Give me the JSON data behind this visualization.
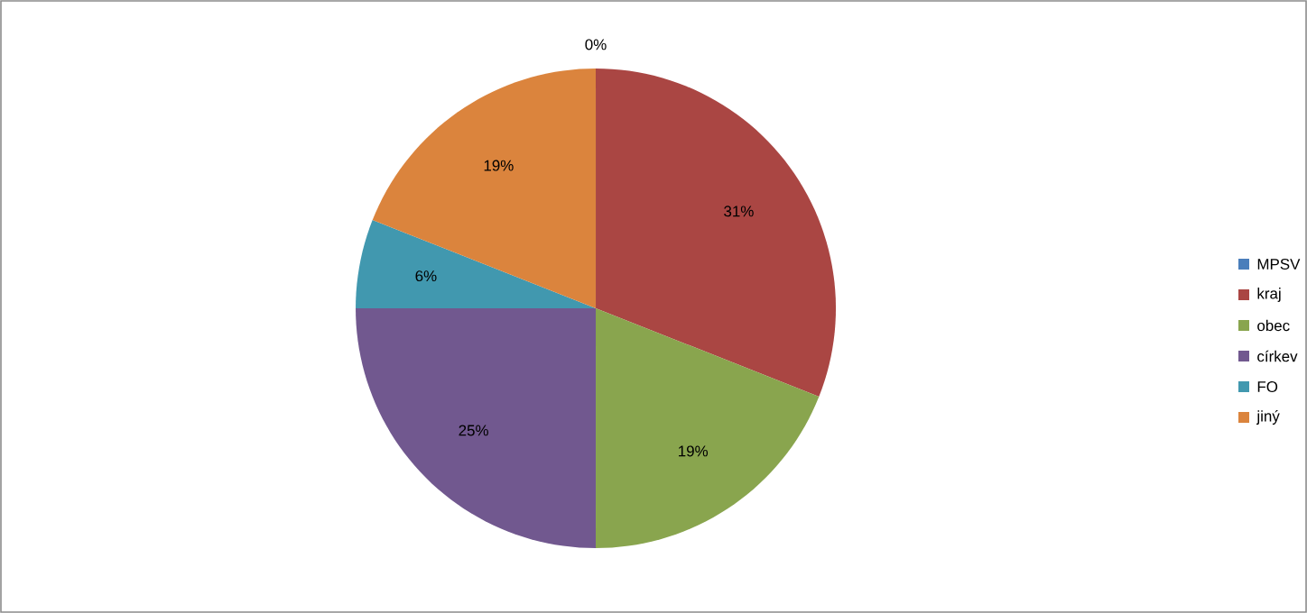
{
  "chart_data": {
    "type": "pie",
    "categories": [
      "MPSV",
      "kraj",
      "obec",
      "církev",
      "FO",
      "jiný"
    ],
    "values": [
      0,
      31,
      19,
      25,
      6,
      19
    ],
    "colors": [
      "#4a7ebb",
      "#aa4643",
      "#89a54e",
      "#71588f",
      "#4198af",
      "#db843d"
    ],
    "value_labels": [
      "0%",
      "31%",
      "19%",
      "25%",
      "6%",
      "19%"
    ],
    "legend": "right"
  }
}
